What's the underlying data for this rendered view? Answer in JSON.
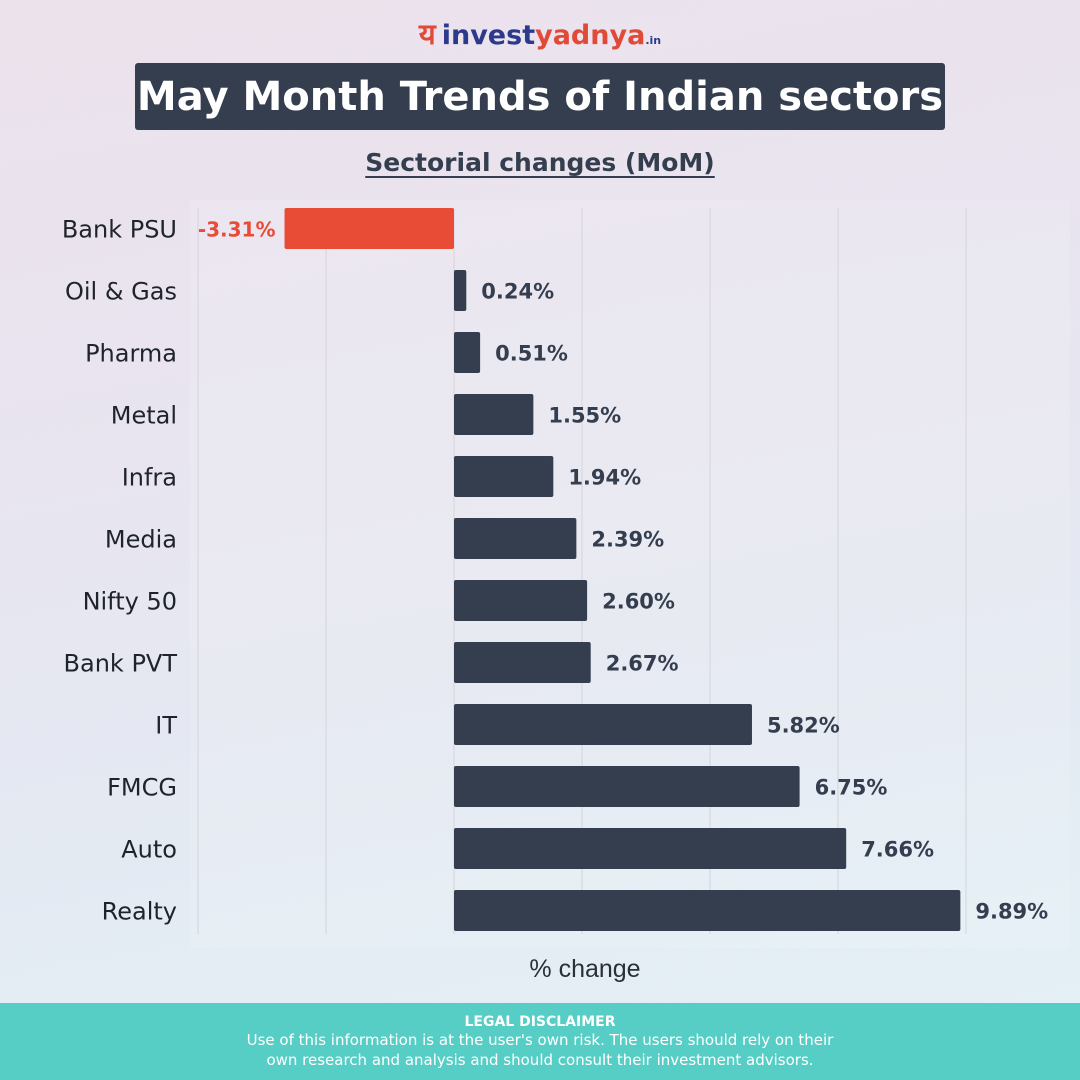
{
  "brand": {
    "mark": "य",
    "name_part1": "invest",
    "name_part2": "yadnya",
    "suffix": ".in"
  },
  "header": {
    "title": "May Month Trends of Indian sectors",
    "subtitle": "Sectorial changes (MoM)"
  },
  "colors": {
    "positive_bar": "#343e4f",
    "negative_bar": "#e84c36",
    "negative_label": "#e84c36",
    "positive_label": "#343e4f",
    "footer_bg": "#57cec5"
  },
  "chart_data": {
    "type": "bar",
    "orientation": "horizontal",
    "categories": [
      "Bank PSU",
      "Oil & Gas",
      "Pharma",
      "Metal",
      "Infra",
      "Media",
      "Nifty 50",
      "Bank PVT",
      "IT",
      "FMCG",
      "Auto",
      "Realty"
    ],
    "values": [
      -3.31,
      0.24,
      0.51,
      1.55,
      1.94,
      2.39,
      2.6,
      2.67,
      5.82,
      6.75,
      7.66,
      9.89
    ],
    "value_labels": [
      "-3.31%",
      "0.24%",
      "0.51%",
      "1.55%",
      "1.94%",
      "2.39%",
      "2.60%",
      "2.67%",
      "5.82%",
      "6.75%",
      "7.66%",
      "9.89%"
    ],
    "title": "Sectorial changes (MoM)",
    "xlabel": "% change",
    "xlim": [
      -10,
      10
    ],
    "grid": true
  },
  "disclaimer": {
    "title": "LEGAL DISCLAIMER",
    "line1": "Use of this information is at the user's own risk. The users should rely on their",
    "line2": "own research and analysis and should consult their investment advisors."
  }
}
